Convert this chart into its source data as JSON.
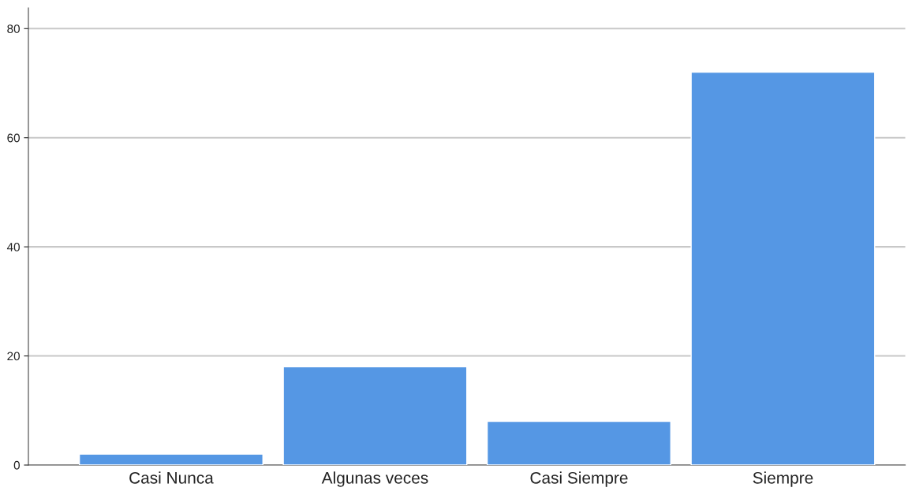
{
  "chart_data": {
    "type": "bar",
    "categories": [
      "Casi Nunca",
      "Algunas veces",
      "Casi Siempre",
      "Siempre"
    ],
    "values": [
      2,
      18,
      8,
      72
    ],
    "color": "#5597e4",
    "ylim": [
      0,
      83.8
    ],
    "yticks": [
      0,
      20,
      40,
      60,
      80
    ],
    "grid": "y"
  }
}
